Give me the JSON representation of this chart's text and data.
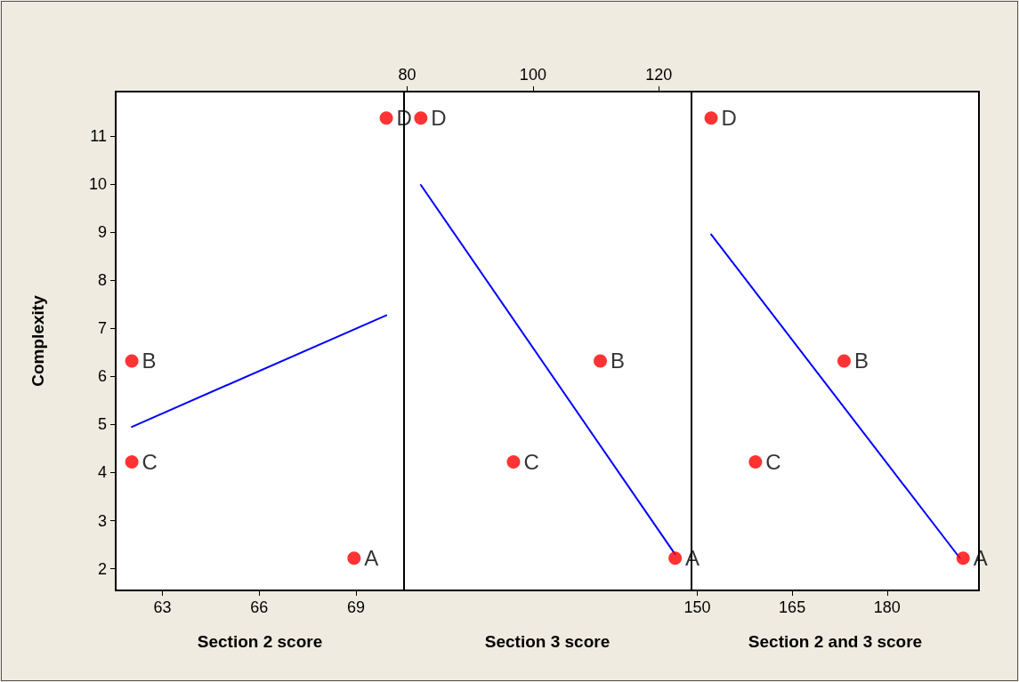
{
  "chart_data": [
    {
      "type": "scatter",
      "xlabel": "Section 2 score",
      "ylabel": "Complexity",
      "xlim": [
        61.55,
        70.49
      ],
      "xticks": [
        63,
        66,
        69
      ],
      "ylim": [
        1.55,
        11.92
      ],
      "yticks": [
        2,
        3,
        4,
        5,
        6,
        7,
        8,
        9,
        10,
        11
      ],
      "series": [
        {
          "color": "#ff0000",
          "marker": "circle",
          "x": [
            68.94,
            62.05,
            62.05,
            69.94
          ],
          "values": [
            2.22,
            6.32,
            4.22,
            11.37
          ],
          "value_labels": [
            "A",
            "B",
            "C",
            "D"
          ]
        },
        {
          "type": "line",
          "color": "#0000ff",
          "x": [
            62.05,
            69.94
          ],
          "values": [
            4.95,
            7.27
          ],
          "line_style": "solid"
        }
      ]
    },
    {
      "type": "scatter",
      "xlabel": "Section 3 score",
      "xlim": [
        79.36,
        125.2
      ],
      "xticks": [
        80,
        100,
        120
      ],
      "ylim": [
        1.55,
        11.92
      ],
      "tick_labels": "x",
      "series": [
        {
          "color": "#ff0000",
          "marker": "circle",
          "x": [
            122.6,
            110.7,
            96.9,
            82.17
          ],
          "values": [
            2.22,
            6.32,
            4.22,
            11.37
          ],
          "value_labels": [
            "A",
            "B",
            "C",
            "D"
          ]
        },
        {
          "type": "line",
          "color": "#0000ff",
          "x": [
            82.17,
            122.6
          ],
          "values": [
            9.98,
            2.3
          ],
          "line_style": "solid"
        }
      ]
    },
    {
      "type": "scatter",
      "xlabel": "Section 2 and 3 score",
      "xlim": [
        149.1,
        194.5
      ],
      "xticks": [
        150,
        165,
        180
      ],
      "ylim": [
        1.55,
        11.92
      ],
      "tick_labels": "x",
      "series": [
        {
          "color": "#ff0000",
          "marker": "circle",
          "x": [
            192.0,
            173.2,
            159.2,
            152.2
          ],
          "values": [
            2.22,
            6.32,
            4.22,
            11.37
          ],
          "value_labels": [
            "A",
            "B",
            "C",
            "D"
          ]
        },
        {
          "type": "line",
          "color": "#0000ff",
          "x": [
            152.2,
            191.5
          ],
          "values": [
            8.95,
            2.22
          ],
          "line_style": "solid"
        }
      ]
    }
  ]
}
